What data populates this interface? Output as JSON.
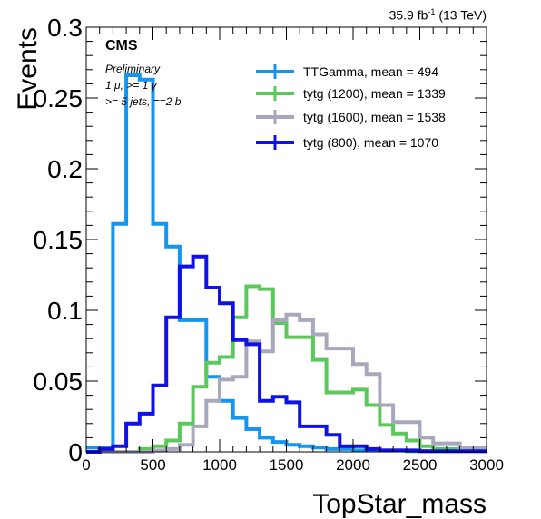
{
  "header": {
    "lumi": "35.9 fb",
    "lumi_exp": "-1",
    "energy": "(13 TeV)"
  },
  "labels": {
    "experiment": "CMS",
    "status": "Preliminary",
    "selection_1": "1 μ, >= 1 γ",
    "selection_2": ">= 5 jets, ==2 b"
  },
  "chart_data": {
    "type": "line",
    "histogram": true,
    "xlabel": "TopStar_mass",
    "ylabel": "Events",
    "xlim": [
      0,
      3000
    ],
    "ylim": [
      0,
      0.3
    ],
    "bin_width": 100,
    "x_ticks": [
      0,
      500,
      1000,
      1500,
      2000,
      2500,
      3000
    ],
    "y_ticks": [
      0,
      0.05,
      0.1,
      0.15,
      0.2,
      0.25,
      0.3
    ],
    "y_tick_labels": [
      "0",
      "0.05",
      "0.1",
      "0.15",
      "0.2",
      "0.25",
      "0.3"
    ],
    "legend_position": "top-right",
    "grid": false,
    "series": [
      {
        "name": "TTGamma, mean = 494",
        "color": "#1496f0",
        "values": [
          0.003,
          0.003,
          0.161,
          0.266,
          0.263,
          0.161,
          0.145,
          0.093,
          0.093,
          0.053,
          0.036,
          0.024,
          0.016,
          0.01,
          0.007,
          0.005,
          0.004,
          0.003,
          0.002,
          0.002,
          0.001,
          0.001,
          0.001,
          0.001,
          0.0005,
          0.0005,
          0.0005,
          0.0005,
          0.0005,
          0.0005
        ]
      },
      {
        "name": "tytg (1200), mean = 1339",
        "color": "#5ac85a",
        "values": [
          0,
          0,
          0,
          0,
          0.002,
          0.004,
          0.008,
          0.02,
          0.046,
          0.063,
          0.067,
          0.095,
          0.117,
          0.115,
          0.091,
          0.081,
          0.081,
          0.065,
          0.042,
          0.042,
          0.044,
          0.033,
          0.019,
          0.013,
          0.008,
          0.004,
          0.002,
          0.002,
          0.001,
          0.001
        ]
      },
      {
        "name": "tytg (1600), mean = 1538",
        "color": "#a8a8bc",
        "values": [
          0,
          0,
          0,
          0,
          0,
          0.001,
          0.002,
          0.005,
          0.018,
          0.036,
          0.051,
          0.053,
          0.078,
          0.071,
          0.093,
          0.097,
          0.093,
          0.083,
          0.073,
          0.073,
          0.062,
          0.055,
          0.033,
          0.021,
          0.021,
          0.01,
          0.006,
          0.006,
          0.003,
          0.003
        ]
      },
      {
        "name": "tytg (800), mean = 1070",
        "color": "#1010e8",
        "values": [
          0,
          0.002,
          0.004,
          0.02,
          0.027,
          0.047,
          0.095,
          0.131,
          0.138,
          0.116,
          0.105,
          0.079,
          0.076,
          0.036,
          0.039,
          0.035,
          0.018,
          0.018,
          0.012,
          0.004,
          0.004,
          0.002,
          0.001,
          0.001,
          0.001,
          0.0005,
          0.0005,
          0.0005,
          0.0005,
          0.0005
        ]
      }
    ]
  }
}
